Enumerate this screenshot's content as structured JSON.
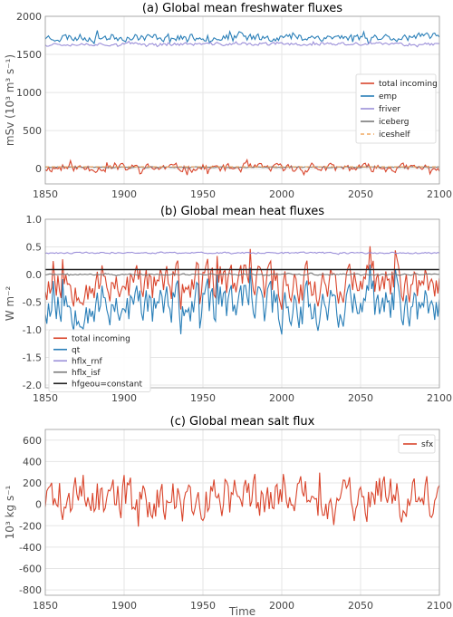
{
  "chart_data": [
    {
      "type": "line",
      "title": "(a) Global mean freshwater fluxes",
      "ylabel": "mSv (10³ m³ s⁻¹)",
      "xlim": [
        1850,
        2100
      ],
      "ylim": [
        -200,
        2000
      ],
      "xticks": [
        "1850",
        "1900",
        "1950",
        "2000",
        "2050",
        "2100"
      ],
      "yticks": [
        "0",
        "500",
        "1000",
        "1500",
        "2000"
      ],
      "grid": true,
      "legend_position": "right",
      "series": [
        {
          "name": "total incoming",
          "color": "#d9452c",
          "style": "noisy",
          "base": 10,
          "amp": 75,
          "period": 4,
          "seed": 11
        },
        {
          "name": "emp",
          "color": "#2a7fb8",
          "style": "noisy",
          "base": 1725,
          "amp": 70,
          "period": 3,
          "seed": 23
        },
        {
          "name": "friver",
          "color": "#9b8fd9",
          "style": "noisy",
          "base": 1635,
          "amp": 30,
          "period": 3,
          "seed": 37
        },
        {
          "name": "iceberg",
          "color": "#7a7a7a",
          "style": "noisy",
          "base": 20,
          "amp": 8,
          "period": 5,
          "seed": 41
        },
        {
          "name": "iceshelf",
          "color": "#f0a860",
          "style": "dashed",
          "base": 25,
          "amp": 0,
          "period": 10,
          "seed": 1
        }
      ]
    },
    {
      "type": "line",
      "title": "(b) Global mean heat fluxes",
      "ylabel": "W m⁻²",
      "xlim": [
        1850,
        2100
      ],
      "ylim": [
        -2.05,
        1.0
      ],
      "xticks": [
        "1850",
        "1900",
        "1950",
        "2000",
        "2050",
        "2100"
      ],
      "yticks": [
        "1.0",
        "0.5",
        "0.0",
        "-0.5",
        "-1.0",
        "-1.5",
        "-2.0"
      ],
      "grid": true,
      "legend_position": "lower-left",
      "series": [
        {
          "name": "total incoming",
          "color": "#d9452c",
          "style": "noisy",
          "base": -0.15,
          "amp": 0.5,
          "period": 2,
          "seed": 53
        },
        {
          "name": "qt",
          "color": "#2a7fb8",
          "style": "noisy",
          "base": -0.55,
          "amp": 0.55,
          "period": 2,
          "seed": 53
        },
        {
          "name": "hflx_rnf",
          "color": "#9b8fd9",
          "style": "noisy",
          "base": 0.39,
          "amp": 0.02,
          "period": 3,
          "seed": 61
        },
        {
          "name": "hflx_isf",
          "color": "#7a7a7a",
          "style": "noisy",
          "base": 0.0,
          "amp": 0.02,
          "period": 4,
          "seed": 71
        },
        {
          "name": "hfgeou=constant",
          "color": "#222222",
          "style": "flat",
          "base": 0.09,
          "amp": 0,
          "period": 10,
          "seed": 1
        }
      ]
    },
    {
      "type": "line",
      "title": "(c) Global mean salt flux",
      "ylabel": "10³ kg s⁻¹",
      "xlabel": "Time",
      "xlim": [
        1850,
        2100
      ],
      "ylim": [
        -850,
        700
      ],
      "xticks": [
        "1850",
        "1900",
        "1950",
        "2000",
        "2050",
        "2100"
      ],
      "yticks": [
        "600",
        "400",
        "200",
        "0",
        "-200",
        "-400",
        "-600",
        "-800"
      ],
      "grid": true,
      "legend_position": "top-right",
      "series": [
        {
          "name": "sfx",
          "color": "#d9452c",
          "style": "noisy",
          "base": 60,
          "amp": 280,
          "period": 2,
          "seed": 89
        }
      ]
    }
  ]
}
